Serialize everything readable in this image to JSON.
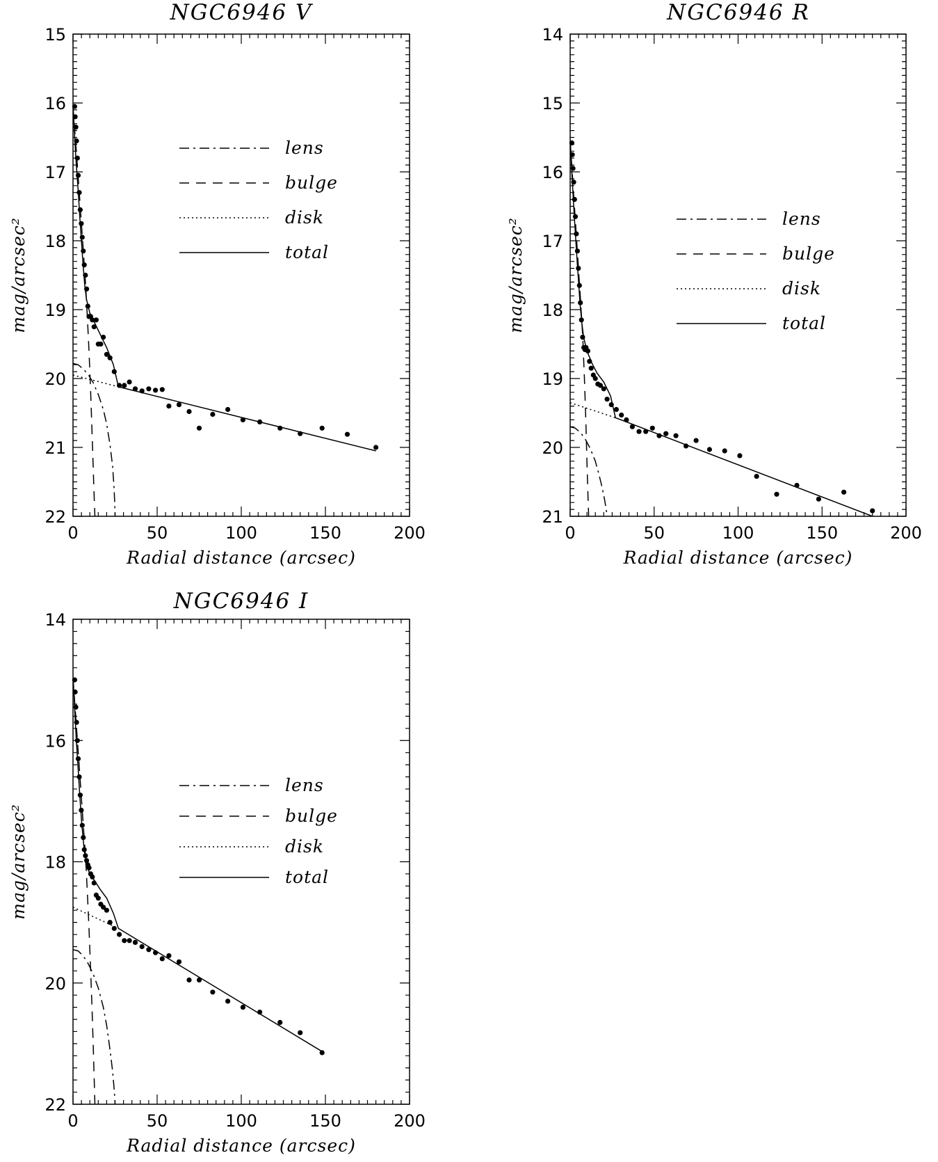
{
  "chart_data": [
    {
      "type": "line",
      "title": "NGC6946 V",
      "xlabel": "Radial distance (arcsec)",
      "ylabel": "mag/arcsec²",
      "xlim": [
        0,
        200
      ],
      "ylim": [
        22,
        15
      ],
      "xticks": [
        0,
        50,
        100,
        150,
        200
      ],
      "yticks": [
        15,
        16,
        17,
        18,
        19,
        20,
        21,
        22
      ],
      "legend": [
        "lens",
        "bulge",
        "disk",
        "total"
      ],
      "legend_position": "upper-middle",
      "series": [
        {
          "name": "lens",
          "style": "dash-dot",
          "x": [
            0,
            3,
            6,
            9,
            12,
            15,
            18,
            20,
            22,
            23.5,
            24.3,
            24.8,
            25
          ],
          "y": [
            19.78,
            19.8,
            19.86,
            19.94,
            20.06,
            20.23,
            20.45,
            20.66,
            20.96,
            21.27,
            21.55,
            21.8,
            22
          ]
        },
        {
          "name": "bulge",
          "style": "dashed",
          "x": [
            0,
            2,
            4,
            6,
            7.5,
            8.5,
            9.5,
            10.5,
            11.2,
            11.8,
            12.4,
            13
          ],
          "y": [
            16.07,
            16.7,
            17.4,
            18.1,
            18.65,
            19.1,
            19.6,
            20.2,
            20.7,
            21.15,
            21.6,
            22
          ]
        },
        {
          "name": "disk",
          "style": "dotted",
          "x": [
            0,
            27
          ],
          "y": [
            19.95,
            20.12
          ]
        },
        {
          "name": "total",
          "style": "solid",
          "x": [
            0,
            0.6,
            1.2,
            2,
            3,
            4,
            5,
            6,
            7,
            8,
            10,
            13,
            16,
            20,
            24,
            27,
            180
          ],
          "y": [
            16.05,
            16.3,
            16.6,
            16.9,
            17.25,
            17.65,
            18.0,
            18.35,
            18.65,
            18.85,
            19.05,
            19.2,
            19.35,
            19.55,
            19.8,
            20.12,
            21.05
          ]
        }
      ],
      "points": {
        "x": [
          1,
          1.3,
          1.7,
          2.1,
          2.6,
          3.1,
          3.7,
          4.3,
          4.9,
          5.5,
          6.1,
          6.7,
          7.4,
          8.1,
          8.8,
          9.5,
          10.5,
          11.5,
          12.5,
          13.8,
          15,
          16.5,
          18,
          20,
          22,
          24.5,
          27.5,
          30.5,
          33.5,
          37,
          41,
          45,
          49,
          53,
          57,
          63,
          69,
          75,
          83,
          92,
          101,
          111,
          123,
          135,
          148,
          163,
          180
        ],
        "y": [
          16.05,
          16.2,
          16.35,
          16.55,
          16.8,
          17.05,
          17.3,
          17.55,
          17.75,
          17.95,
          18.15,
          18.35,
          18.5,
          18.7,
          18.95,
          19.1,
          19.1,
          19.15,
          19.25,
          19.15,
          19.5,
          19.5,
          19.4,
          19.65,
          19.7,
          19.9,
          20.1,
          20.1,
          20.05,
          20.15,
          20.18,
          20.15,
          20.17,
          20.16,
          20.4,
          20.38,
          20.48,
          20.72,
          20.52,
          20.45,
          20.6,
          20.63,
          20.72,
          20.8,
          20.72,
          20.81,
          21.0
        ]
      }
    },
    {
      "type": "line",
      "title": "NGC6946 R",
      "xlabel": "Radial distance (arcsec)",
      "ylabel": "mag/arcsec²",
      "xlim": [
        0,
        200
      ],
      "ylim": [
        21,
        14
      ],
      "xticks": [
        0,
        50,
        100,
        150,
        200
      ],
      "yticks": [
        14,
        15,
        16,
        17,
        18,
        19,
        20,
        21
      ],
      "legend": [
        "lens",
        "bulge",
        "disk",
        "total"
      ],
      "legend_position": "upper-middle",
      "series": [
        {
          "name": "lens",
          "style": "dash-dot",
          "x": [
            0,
            3,
            6,
            9,
            12,
            15,
            17,
            19,
            20.5,
            21.2,
            21.7,
            22
          ],
          "y": [
            19.7,
            19.72,
            19.78,
            19.88,
            20.02,
            20.2,
            20.38,
            20.58,
            20.76,
            20.86,
            20.94,
            21
          ]
        },
        {
          "name": "bulge",
          "style": "dashed",
          "x": [
            0,
            2,
            4,
            6,
            7.5,
            8.5,
            9.3,
            10,
            10.6,
            11
          ],
          "y": [
            15.55,
            16.3,
            17.05,
            17.8,
            18.4,
            19.0,
            19.6,
            20.2,
            20.7,
            21
          ]
        },
        {
          "name": "disk",
          "style": "dotted",
          "x": [
            0,
            27
          ],
          "y": [
            19.35,
            19.57
          ]
        },
        {
          "name": "total",
          "style": "solid",
          "x": [
            0,
            0.6,
            1.2,
            2,
            3,
            4,
            5,
            6,
            7,
            8,
            10,
            13,
            16,
            20,
            24,
            27,
            180
          ],
          "y": [
            15.55,
            15.8,
            16.1,
            16.45,
            16.85,
            17.25,
            17.6,
            17.95,
            18.2,
            18.4,
            18.6,
            18.78,
            18.92,
            19.05,
            19.25,
            19.57,
            21.0
          ]
        }
      ],
      "points": {
        "x": [
          1,
          1.3,
          1.7,
          2.1,
          2.6,
          3.1,
          3.7,
          4.3,
          4.9,
          5.5,
          6.1,
          6.7,
          7.4,
          8.1,
          8.8,
          9.5,
          10.5,
          11.5,
          12.5,
          13.8,
          15,
          16.5,
          18,
          20,
          22,
          24.5,
          27.5,
          30.5,
          33.5,
          37,
          41,
          45,
          49,
          53,
          57,
          63,
          69,
          75,
          83,
          92,
          101,
          111,
          123,
          135,
          148,
          163,
          180
        ],
        "y": [
          15.58,
          15.75,
          15.95,
          16.15,
          16.4,
          16.65,
          16.9,
          17.15,
          17.4,
          17.65,
          17.9,
          18.15,
          18.4,
          18.55,
          18.58,
          18.55,
          18.6,
          18.75,
          18.85,
          18.95,
          19.0,
          19.08,
          19.1,
          19.15,
          19.3,
          19.38,
          19.45,
          19.53,
          19.6,
          19.7,
          19.77,
          19.77,
          19.72,
          19.83,
          19.8,
          19.83,
          19.98,
          19.9,
          20.03,
          20.05,
          20.12,
          20.42,
          20.68,
          20.55,
          20.75,
          20.65,
          20.92
        ]
      }
    },
    {
      "type": "line",
      "title": "NGC6946 I",
      "xlabel": "Radial distance (arcsec)",
      "ylabel": "mag/arcsec²",
      "xlim": [
        0,
        200
      ],
      "ylim": [
        22,
        14
      ],
      "xticks": [
        0,
        50,
        100,
        150,
        200
      ],
      "yticks": [
        14,
        16,
        18,
        20,
        22
      ],
      "legend": [
        "lens",
        "bulge",
        "disk",
        "total"
      ],
      "legend_position": "upper-middle",
      "series": [
        {
          "name": "lens",
          "style": "dash-dot",
          "x": [
            0,
            3,
            6,
            9,
            12,
            15,
            18,
            20,
            22,
            23.5,
            24.3,
            24.8,
            25
          ],
          "y": [
            19.45,
            19.47,
            19.55,
            19.68,
            19.85,
            20.08,
            20.4,
            20.7,
            21.1,
            21.45,
            21.7,
            21.88,
            22
          ]
        },
        {
          "name": "bulge",
          "style": "dashed",
          "x": [
            0,
            2,
            4,
            6,
            7.5,
            8.5,
            9.5,
            10.5,
            11.3,
            12,
            12.6,
            13
          ],
          "y": [
            14.97,
            15.75,
            16.55,
            17.35,
            17.95,
            18.5,
            19.1,
            19.8,
            20.4,
            21.0,
            21.6,
            22
          ]
        },
        {
          "name": "disk",
          "style": "dotted",
          "x": [
            0,
            27
          ],
          "y": [
            18.75,
            19.1
          ]
        },
        {
          "name": "total",
          "style": "solid",
          "x": [
            0,
            0.6,
            1.2,
            2,
            3,
            4,
            5,
            6,
            7,
            8,
            10,
            13,
            16,
            20,
            24,
            27,
            148
          ],
          "y": [
            14.97,
            15.25,
            15.6,
            16.0,
            16.45,
            16.9,
            17.3,
            17.62,
            17.88,
            18.05,
            18.2,
            18.32,
            18.45,
            18.6,
            18.85,
            19.1,
            21.13
          ]
        }
      ],
      "points": {
        "x": [
          1,
          1.3,
          1.7,
          2.1,
          2.6,
          3.1,
          3.7,
          4.3,
          4.9,
          5.5,
          6.1,
          6.7,
          7.4,
          8.1,
          8.8,
          9.5,
          10.5,
          11.5,
          12.5,
          13.8,
          15,
          16.5,
          18,
          20,
          22,
          24.5,
          27.5,
          30.5,
          33.5,
          37,
          41,
          45,
          49,
          53,
          57,
          63,
          69,
          75,
          83,
          92,
          101,
          111,
          123,
          135,
          148
        ],
        "y": [
          15.0,
          15.2,
          15.45,
          15.7,
          16.0,
          16.3,
          16.6,
          16.9,
          17.15,
          17.4,
          17.6,
          17.8,
          17.9,
          17.98,
          18.05,
          18.1,
          18.2,
          18.25,
          18.35,
          18.55,
          18.6,
          18.7,
          18.75,
          18.8,
          19.0,
          19.1,
          19.2,
          19.3,
          19.3,
          19.33,
          19.4,
          19.45,
          19.5,
          19.6,
          19.55,
          19.65,
          19.95,
          19.95,
          20.15,
          20.3,
          20.4,
          20.48,
          20.65,
          20.82,
          21.15
        ]
      }
    }
  ]
}
